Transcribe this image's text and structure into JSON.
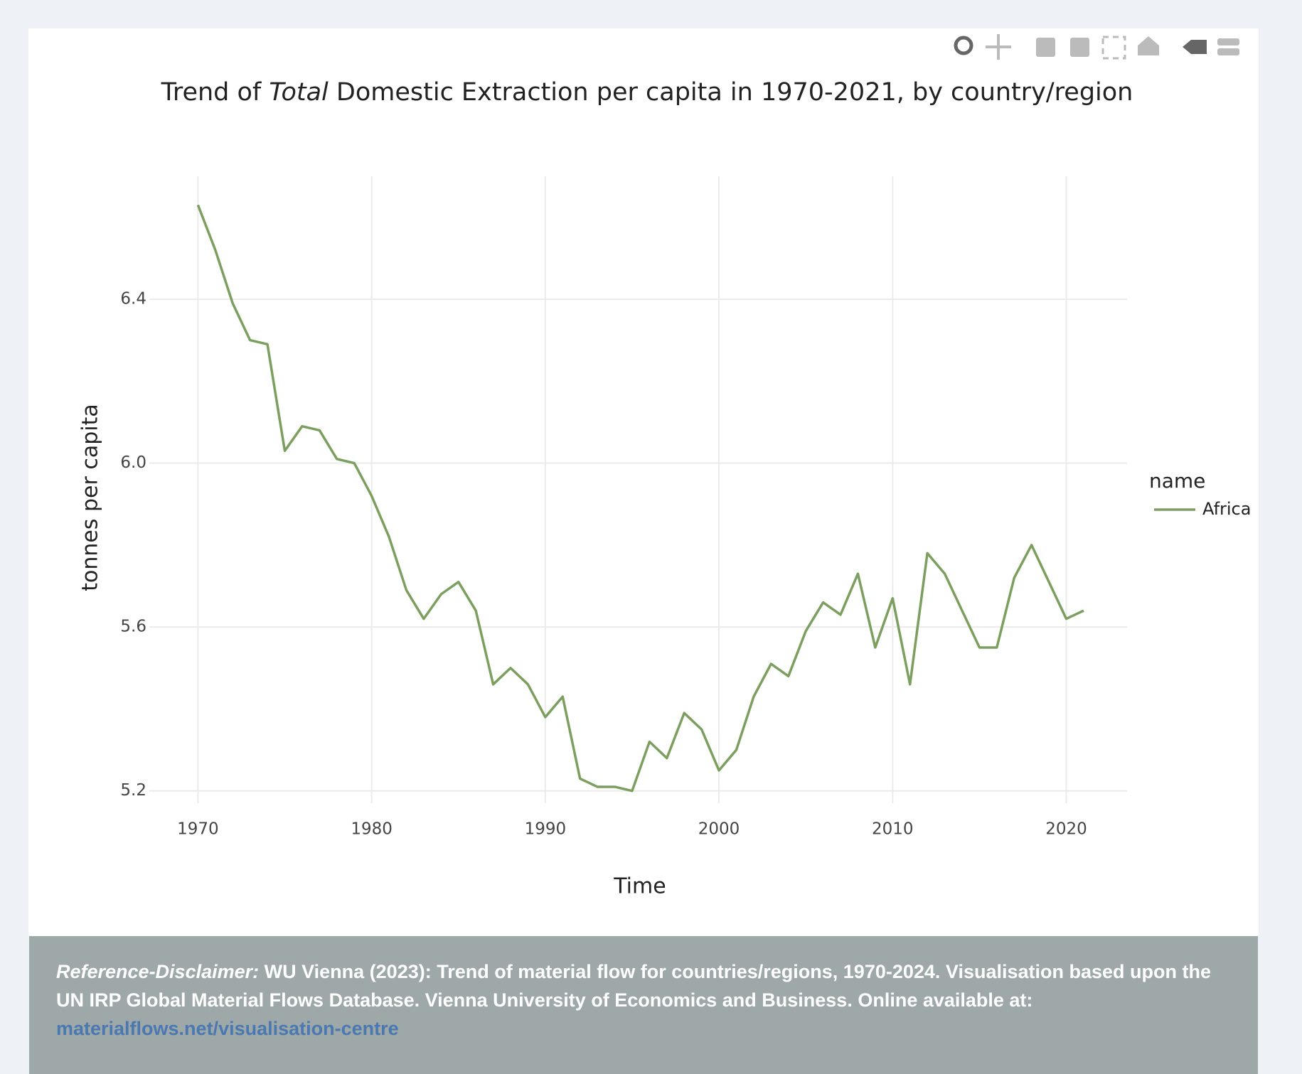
{
  "chart_data": {
    "type": "line",
    "title": [
      "Trend of ",
      "Total",
      " Domestic Extraction per capita in 1970-2021, by country/region"
    ],
    "x_label": "Time",
    "y_label": "tonnes per capita",
    "legend_title": "name",
    "x": [
      1970,
      1971,
      1972,
      1973,
      1974,
      1975,
      1976,
      1977,
      1978,
      1979,
      1980,
      1981,
      1982,
      1983,
      1984,
      1985,
      1986,
      1987,
      1988,
      1989,
      1990,
      1991,
      1992,
      1993,
      1994,
      1995,
      1996,
      1997,
      1998,
      1999,
      2000,
      2001,
      2002,
      2003,
      2004,
      2005,
      2006,
      2007,
      2008,
      2009,
      2010,
      2011,
      2012,
      2013,
      2014,
      2015,
      2016,
      2017,
      2018,
      2019,
      2020,
      2021
    ],
    "series": [
      {
        "name": "Africa",
        "color": "#7c9f5f",
        "values": [
          6.63,
          6.52,
          6.39,
          6.3,
          6.29,
          6.03,
          6.09,
          6.08,
          6.01,
          6.0,
          5.92,
          5.82,
          5.69,
          5.62,
          5.68,
          5.71,
          5.64,
          5.46,
          5.5,
          5.46,
          5.38,
          5.43,
          5.23,
          5.21,
          5.21,
          5.2,
          5.32,
          5.28,
          5.39,
          5.35,
          5.25,
          5.3,
          5.43,
          5.51,
          5.48,
          5.59,
          5.66,
          5.63,
          5.73,
          5.55,
          5.67,
          5.46,
          5.78,
          5.73,
          5.64,
          5.55,
          5.55,
          5.72,
          5.8,
          5.71,
          5.62,
          5.64
        ]
      }
    ],
    "xlim": [
      1967.2,
      2023.5
    ],
    "ylim": [
      5.17,
      6.7
    ],
    "xticks": [
      1970,
      1980,
      1990,
      2000,
      2010,
      2020
    ],
    "yticks": [
      {
        "value": 5.2,
        "label": "5.2"
      },
      {
        "value": 5.6,
        "label": "5.6"
      },
      {
        "value": 6.0,
        "label": "6.0"
      },
      {
        "value": 6.4,
        "label": "6.4"
      }
    ],
    "grid": true,
    "legend_position": "right"
  },
  "footer": {
    "label": "Reference-Disclaimer:",
    "text": " WU Vienna (2023): Trend of material flow for countries/regions, 1970-2024. Visualisation based upon the UN IRP Global Material Flows Database. Vienna University of Economics and Business. Online available at:",
    "link": "materialflows.net/visualisation-centre"
  }
}
